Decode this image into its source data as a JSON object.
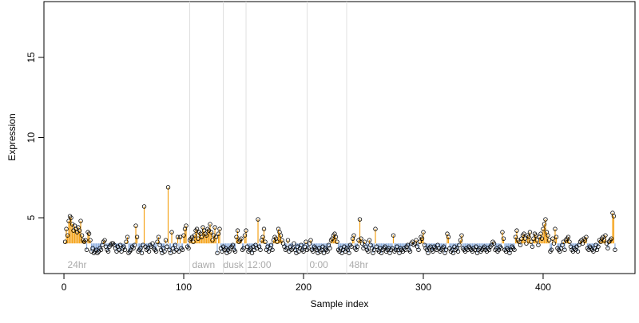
{
  "chart_data": {
    "type": "lollipop",
    "x_label": "Sample index",
    "y_label": "Expression",
    "xlim": [
      -16.7,
      476.7
    ],
    "ylim": [
      1.52,
      18.48
    ],
    "xticks": [
      0,
      100,
      200,
      300,
      400
    ],
    "yticks": [
      5,
      10,
      15
    ],
    "reference_line": 3.4,
    "above_color": "#f5a31a",
    "below_color": "#8fb0e0",
    "vlines": [
      105,
      133,
      152,
      203,
      236
    ],
    "annotations": [
      {
        "text": "24hr",
        "x": 3
      },
      {
        "text": "dawn",
        "x": 107
      },
      {
        "text": "dusk",
        "x": 133
      },
      {
        "text": "12:00",
        "x": 153
      },
      {
        "text": "0:00",
        "x": 205
      },
      {
        "text": "48hr",
        "x": 238
      }
    ],
    "x": [
      1,
      2,
      3,
      4,
      5,
      6,
      7,
      8,
      9,
      10,
      11,
      12,
      13,
      14,
      15,
      16,
      17,
      18,
      19,
      20,
      21,
      22,
      23,
      24,
      25,
      26,
      27,
      28,
      29,
      30,
      31,
      32,
      33,
      34,
      35,
      36,
      37,
      38,
      39,
      40,
      41,
      42,
      43,
      44,
      45,
      46,
      47,
      48,
      49,
      50,
      51,
      52,
      53,
      54,
      55,
      56,
      57,
      58,
      59,
      60,
      61,
      62,
      63,
      64,
      65,
      66,
      67,
      68,
      69,
      70,
      71,
      72,
      73,
      74,
      75,
      76,
      77,
      78,
      79,
      80,
      81,
      82,
      83,
      84,
      85,
      86,
      87,
      88,
      89,
      90,
      91,
      92,
      93,
      94,
      95,
      96,
      97,
      98,
      99,
      100,
      101,
      102,
      103,
      104,
      105,
      106,
      107,
      108,
      109,
      110,
      111,
      112,
      113,
      114,
      115,
      116,
      117,
      118,
      119,
      120,
      121,
      122,
      123,
      124,
      125,
      126,
      127,
      128,
      129,
      130,
      131,
      132,
      133,
      134,
      135,
      136,
      137,
      138,
      139,
      140,
      141,
      142,
      143,
      144,
      145,
      146,
      147,
      148,
      149,
      150,
      151,
      152,
      153,
      154,
      155,
      156,
      157,
      158,
      159,
      160,
      161,
      162,
      163,
      164,
      165,
      166,
      167,
      168,
      169,
      170,
      171,
      172,
      173,
      174,
      175,
      176,
      177,
      178,
      179,
      180,
      181,
      182,
      183,
      184,
      185,
      186,
      187,
      188,
      189,
      190,
      191,
      192,
      193,
      194,
      195,
      196,
      197,
      198,
      199,
      200,
      201,
      202,
      203,
      204,
      205,
      206,
      207,
      208,
      209,
      210,
      211,
      212,
      213,
      214,
      215,
      216,
      217,
      218,
      219,
      220,
      221,
      222,
      223,
      224,
      225,
      226,
      227,
      228,
      229,
      230,
      231,
      232,
      233,
      234,
      235,
      236,
      237,
      238,
      239,
      240,
      241,
      242,
      243,
      244,
      245,
      246,
      247,
      248,
      249,
      250,
      251,
      252,
      253,
      254,
      255,
      256,
      257,
      258,
      259,
      260,
      261,
      262,
      263,
      264,
      265,
      266,
      267,
      268,
      269,
      270,
      271,
      272,
      273,
      274,
      275,
      276,
      277,
      278,
      279,
      280,
      281,
      282,
      283,
      284,
      285,
      286,
      287,
      288,
      289,
      290,
      291,
      292,
      293,
      294,
      295,
      296,
      297,
      298,
      299,
      300,
      301,
      302,
      303,
      304,
      305,
      306,
      307,
      308,
      309,
      310,
      311,
      312,
      313,
      314,
      315,
      316,
      317,
      318,
      319,
      320,
      321,
      322,
      323,
      324,
      325,
      326,
      327,
      328,
      329,
      330,
      331,
      332,
      333,
      334,
      335,
      336,
      337,
      338,
      339,
      340,
      341,
      342,
      343,
      344,
      345,
      346,
      347,
      348,
      349,
      350,
      351,
      352,
      353,
      354,
      355,
      356,
      357,
      358,
      359,
      360,
      361,
      362,
      363,
      364,
      365,
      366,
      367,
      368,
      369,
      370,
      371,
      372,
      373,
      374,
      375,
      376,
      377,
      378,
      379,
      380,
      381,
      382,
      383,
      384,
      385,
      386,
      387,
      388,
      389,
      390,
      391,
      392,
      393,
      394,
      395,
      396,
      397,
      398,
      399,
      400,
      401,
      402,
      403,
      404,
      405,
      406,
      407,
      408,
      409,
      410,
      411,
      412,
      413,
      414,
      415,
      416,
      417,
      418,
      419,
      420,
      421,
      422,
      423,
      424,
      425,
      426,
      427,
      428,
      429,
      430,
      431,
      432,
      433,
      434,
      435,
      436,
      437,
      438,
      439,
      440,
      441,
      442,
      443,
      444,
      445,
      446,
      447,
      448,
      449,
      450,
      451,
      452,
      453,
      454,
      455,
      456,
      457,
      458,
      459,
      460
    ],
    "values": [
      3.5,
      4.3,
      3.9,
      4.8,
      5.1,
      5.0,
      4.6,
      4.2,
      4.5,
      4.3,
      4.1,
      4.4,
      4.2,
      4.8,
      3.9,
      3.6,
      3.5,
      3.6,
      3.0,
      4.1,
      4.0,
      3.6,
      2.9,
      3.1,
      2.8,
      2.9,
      3.0,
      2.8,
      2.9,
      3.1,
      3.0,
      3.3,
      3.5,
      3.6,
      3.2,
      3.0,
      2.9,
      3.2,
      3.3,
      3.4,
      3.4,
      3.3,
      3.1,
      2.9,
      3.2,
      3.0,
      3.3,
      2.9,
      3.1,
      3.2,
      3.0,
      3.5,
      3.8,
      2.8,
      2.9,
      3.0,
      3.2,
      3.1,
      3.3,
      4.5,
      3.8,
      2.9,
      3.0,
      3.1,
      2.8,
      3.3,
      5.7,
      3.2,
      3.0,
      3.1,
      2.9,
      3.3,
      3.2,
      3.4,
      3.1,
      3.0,
      2.9,
      3.5,
      3.8,
      3.3,
      3.0,
      2.8,
      3.1,
      2.9,
      3.6,
      3.2,
      6.9,
      3.0,
      2.8,
      4.1,
      3.1,
      2.9,
      3.3,
      3.0,
      3.8,
      2.9,
      3.8,
      3.1,
      3.0,
      3.9,
      4.3,
      4.5,
      3.2,
      3.1,
      3.6,
      3.7,
      3.8,
      3.5,
      3.9,
      4.2,
      4.3,
      3.7,
      4.1,
      4.0,
      3.8,
      4.4,
      4.2,
      4.0,
      3.9,
      4.3,
      4.2,
      4.6,
      4.1,
      3.6,
      3.9,
      4.4,
      3.8,
      2.8,
      4.0,
      4.3,
      3.1,
      2.9,
      3.2,
      3.0,
      3.1,
      2.8,
      3.0,
      2.9,
      3.1,
      3.2,
      3.3,
      3.0,
      2.9,
      3.8,
      4.2,
      3.5,
      3.6,
      3.7,
      3.0,
      3.1,
      3.9,
      4.2,
      3.2,
      2.9,
      3.0,
      3.1,
      2.8,
      3.2,
      3.0,
      3.3,
      3.1,
      4.9,
      3.2,
      3.0,
      3.6,
      3.8,
      4.3,
      3.5,
      3.0,
      3.2,
      2.9,
      3.1,
      3.3,
      3.0,
      3.6,
      3.8,
      3.7,
      3.5,
      4.3,
      4.1,
      3.9,
      3.6,
      3.4,
      3.2,
      3.0,
      3.1,
      3.6,
      2.9,
      3.2,
      3.0,
      3.1,
      3.4,
      3.0,
      2.8,
      3.2,
      2.9,
      3.1,
      3.3,
      3.0,
      2.9,
      3.2,
      3.5,
      3.0,
      3.1,
      3.4,
      3.6,
      3.0,
      2.9,
      3.2,
      3.1,
      3.0,
      2.8,
      3.1,
      2.9,
      3.0,
      3.2,
      2.8,
      3.1,
      3.0,
      2.9,
      3.3,
      3.1,
      3.6,
      3.7,
      3.9,
      4.0,
      3.8,
      3.5,
      3.0,
      2.9,
      3.1,
      2.8,
      3.0,
      3.2,
      2.9,
      3.1,
      3.0,
      2.8,
      3.3,
      3.2,
      3.7,
      3.9,
      3.1,
      3.0,
      3.2,
      3.6,
      4.9,
      3.7,
      3.4,
      3.1,
      3.5,
      3.2,
      3.0,
      2.9,
      3.6,
      3.3,
      3.1,
      2.8,
      3.0,
      4.3,
      3.2,
      3.0,
      2.9,
      3.1,
      2.8,
      3.0,
      3.1,
      3.2,
      2.9,
      3.0,
      3.1,
      2.8,
      3.0,
      3.1,
      3.9,
      2.9,
      3.0,
      3.2,
      3.0,
      2.8,
      3.1,
      3.0,
      2.9,
      3.1,
      3.0,
      3.2,
      3.3,
      3.0,
      2.9,
      3.4,
      3.5,
      3.3,
      3.4,
      3.6,
      3.2,
      3.0,
      3.5,
      3.8,
      3.7,
      4.1,
      3.3,
      3.1,
      3.0,
      2.8,
      3.1,
      3.2,
      3.0,
      2.9,
      3.2,
      3.1,
      3.0,
      3.3,
      3.1,
      2.9,
      3.0,
      3.1,
      3.2,
      2.8,
      3.0,
      4.0,
      3.8,
      3.1,
      2.9,
      3.0,
      2.8,
      3.2,
      3.0,
      3.1,
      2.9,
      3.3,
      3.6,
      3.9,
      3.1,
      3.0,
      2.9,
      3.1,
      3.0,
      3.2,
      3.1,
      3.0,
      2.9,
      3.1,
      3.0,
      3.2,
      2.8,
      3.0,
      3.1,
      2.9,
      3.0,
      3.1,
      3.2,
      3.0,
      2.9,
      3.1,
      3.0,
      3.2,
      3.3,
      3.5,
      3.4,
      3.0,
      3.1,
      2.9,
      3.0,
      3.2,
      3.1,
      4.1,
      3.7,
      3.0,
      2.9,
      3.1,
      3.0,
      2.8,
      3.0,
      3.2,
      3.1,
      3.0,
      3.8,
      4.2,
      3.6,
      3.5,
      3.3,
      3.7,
      3.9,
      4.0,
      3.7,
      3.4,
      3.9,
      3.8,
      4.1,
      3.5,
      3.2,
      3.7,
      4.0,
      3.9,
      3.6,
      3.3,
      3.8,
      4.0,
      3.7,
      4.3,
      4.6,
      4.9,
      4.1,
      3.9,
      3.6,
      2.9,
      3.0,
      3.7,
      3.4,
      4.3,
      3.8,
      3.1,
      3.0,
      2.9,
      3.1,
      3.3,
      3.5,
      3.0,
      3.6,
      3.7,
      3.8,
      3.5,
      3.2,
      3.0,
      2.9,
      3.1,
      3.0,
      3.2,
      2.9,
      3.3,
      3.5,
      3.6,
      3.4,
      3.7,
      3.6,
      3.8,
      3.1,
      3.0,
      3.2,
      3.1,
      3.0,
      2.9,
      3.1,
      3.3,
      3.0,
      3.2,
      3.6,
      3.5,
      3.7,
      3.8,
      3.6,
      3.9,
      3.4,
      3.1,
      3.5,
      3.6,
      3.7,
      5.3,
      5.1,
      3.0
    ]
  }
}
